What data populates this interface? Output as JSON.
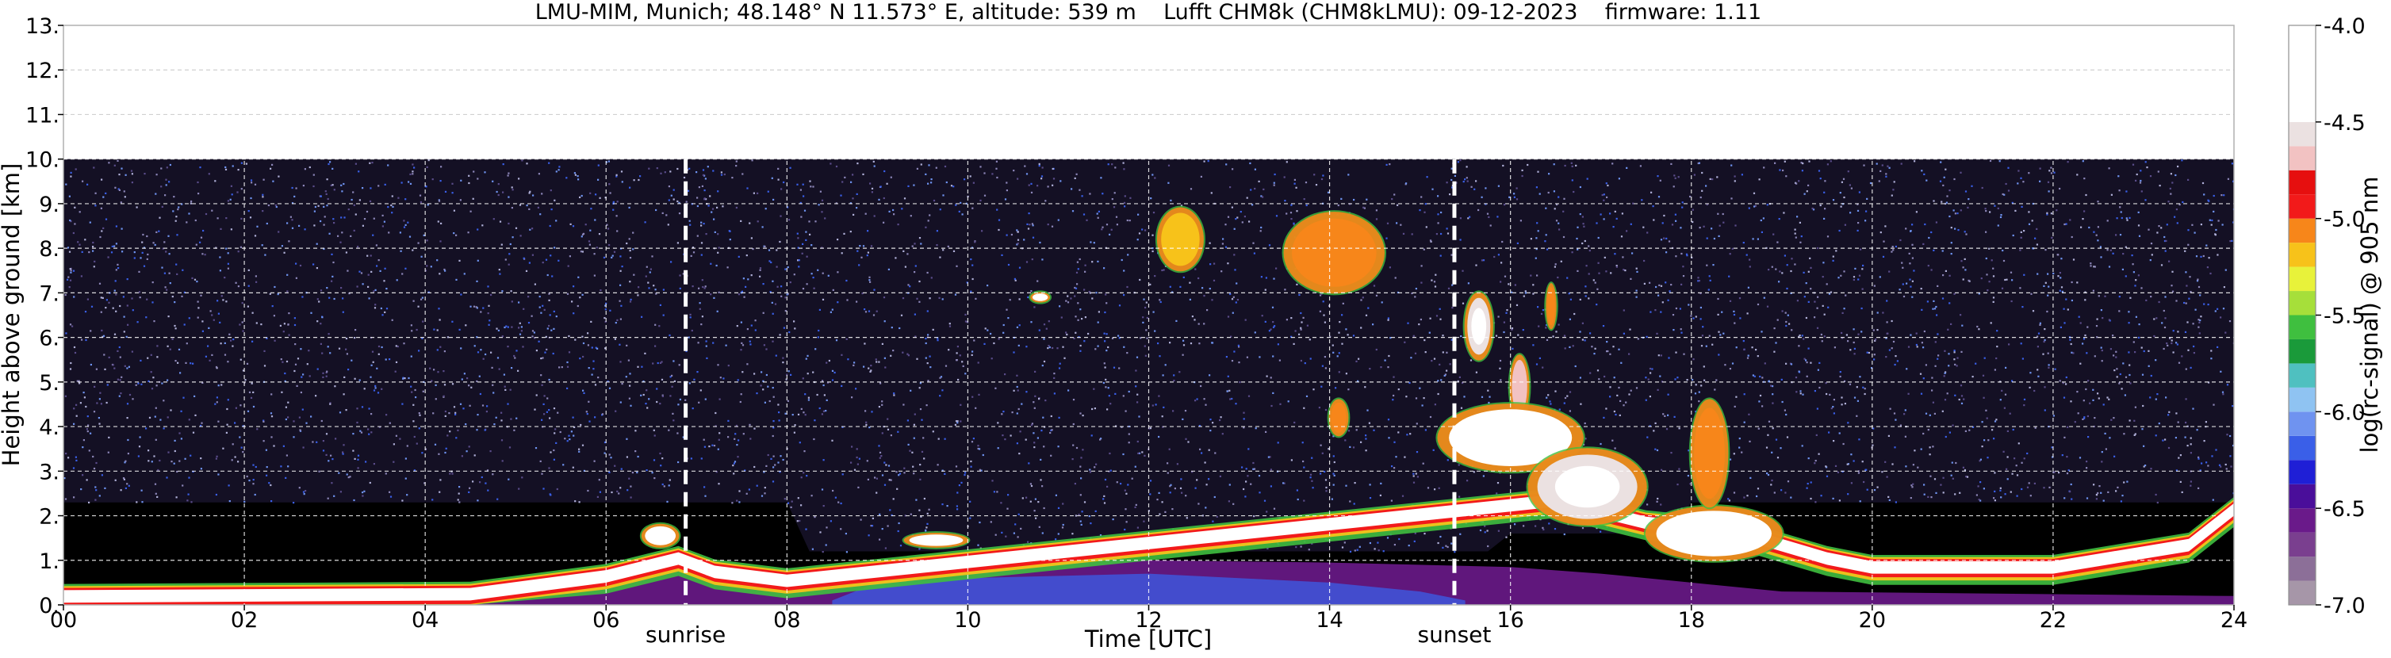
{
  "chart_data": {
    "type": "heatmap",
    "title": "LMU-MIM, Munich; 48.148° N 11.573° E, altitude: 539 m    Lufft CHM8k (CHM8kLMU): 09-12-2023    firmware: 1.11",
    "xlabel": "Time [UTC]",
    "ylabel": "Height above ground [km]",
    "colorbar_label": "log(rc-signal) @ 905 nm",
    "xlim": [
      0,
      24
    ],
    "ylim": [
      0,
      13
    ],
    "x_ticks": [
      {
        "value": 0,
        "label": "00"
      },
      {
        "value": 2,
        "label": "02"
      },
      {
        "value": 4,
        "label": "04"
      },
      {
        "value": 6,
        "label": "06"
      },
      {
        "value": 8,
        "label": "08"
      },
      {
        "value": 10,
        "label": "10"
      },
      {
        "value": 12,
        "label": "12"
      },
      {
        "value": 14,
        "label": "14"
      },
      {
        "value": 16,
        "label": "16"
      },
      {
        "value": 18,
        "label": "18"
      },
      {
        "value": 20,
        "label": "20"
      },
      {
        "value": 22,
        "label": "22"
      },
      {
        "value": 24,
        "label": "24"
      }
    ],
    "y_ticks": [
      {
        "value": 0,
        "label": "0."
      },
      {
        "value": 1,
        "label": "1."
      },
      {
        "value": 2,
        "label": "2."
      },
      {
        "value": 3,
        "label": "3."
      },
      {
        "value": 4,
        "label": "4."
      },
      {
        "value": 5,
        "label": "5."
      },
      {
        "value": 6,
        "label": "6."
      },
      {
        "value": 7,
        "label": "7."
      },
      {
        "value": 8,
        "label": "8."
      },
      {
        "value": 9,
        "label": "9."
      },
      {
        "value": 10,
        "label": "10."
      },
      {
        "value": 11,
        "label": "11."
      },
      {
        "value": 12,
        "label": "12."
      },
      {
        "value": 13,
        "label": "13."
      }
    ],
    "grid": true,
    "measurement_top": 10,
    "colorbar": {
      "range": [
        -7.0,
        -4.0
      ],
      "ticks": [
        {
          "value": -4.0,
          "label": "-4.0"
        },
        {
          "value": -4.5,
          "label": "-4.5"
        },
        {
          "value": -5.0,
          "label": "-5.0"
        },
        {
          "value": -5.5,
          "label": "-5.5"
        },
        {
          "value": -6.0,
          "label": "-6.0"
        },
        {
          "value": -6.5,
          "label": "-6.5"
        },
        {
          "value": -7.0,
          "label": "-7.0"
        }
      ],
      "bins": [
        {
          "from": -7.0,
          "to": -6.875,
          "color": "#a696a8"
        },
        {
          "from": -6.875,
          "to": -6.75,
          "color": "#8c6f98"
        },
        {
          "from": -6.75,
          "to": -6.625,
          "color": "#7a3f8f"
        },
        {
          "from": -6.625,
          "to": -6.5,
          "color": "#6a1a8a"
        },
        {
          "from": -6.5,
          "to": -6.375,
          "color": "#4a0e9a"
        },
        {
          "from": -6.375,
          "to": -6.25,
          "color": "#1f1fd6"
        },
        {
          "from": -6.25,
          "to": -6.125,
          "color": "#3a5fe8"
        },
        {
          "from": -6.125,
          "to": -6.0,
          "color": "#6f93f0"
        },
        {
          "from": -6.0,
          "to": -5.875,
          "color": "#8fc3f2"
        },
        {
          "from": -5.875,
          "to": -5.75,
          "color": "#4fc0c0"
        },
        {
          "from": -5.75,
          "to": -5.625,
          "color": "#1a9a3a"
        },
        {
          "from": -5.625,
          "to": -5.5,
          "color": "#3fbf3f"
        },
        {
          "from": -5.5,
          "to": -5.375,
          "color": "#a6df3a"
        },
        {
          "from": -5.375,
          "to": -5.25,
          "color": "#e8f23a"
        },
        {
          "from": -5.25,
          "to": -5.125,
          "color": "#f7c21a"
        },
        {
          "from": -5.125,
          "to": -5.0,
          "color": "#f7861a"
        },
        {
          "from": -5.0,
          "to": -4.875,
          "color": "#f21a1a"
        },
        {
          "from": -4.875,
          "to": -4.75,
          "color": "#e60f0f"
        },
        {
          "from": -4.75,
          "to": -4.625,
          "color": "#f2c2c2"
        },
        {
          "from": -4.625,
          "to": -4.5,
          "color": "#ebe1e1"
        },
        {
          "from": -4.5,
          "to": -4.0,
          "color": "#ffffff"
        }
      ]
    },
    "annotations": [
      {
        "name": "sunrise",
        "label": "sunrise",
        "x": 6.88
      },
      {
        "name": "sunset",
        "label": "sunset",
        "x": 15.38
      }
    ],
    "colors": {
      "background_dark": "#141024",
      "noise_light": "#8c86b8",
      "noise_mid": "#5a4c8a",
      "low_black": "#000000",
      "boundary_layer_purple": "#7a2f9a",
      "white_cloud": "#ffffff",
      "red_edge": "#f21a1a"
    },
    "features": {
      "background_value": -6.4,
      "boundary_layer_value": -6.6,
      "cloud_core_value": -4.3,
      "boundary_layer_top": [
        [
          0,
          0.25
        ],
        [
          3,
          0.3
        ],
        [
          5,
          0.55
        ],
        [
          6,
          0.8
        ],
        [
          7,
          0.9
        ],
        [
          8,
          0.8
        ],
        [
          10,
          0.9
        ],
        [
          12,
          1.0
        ],
        [
          14,
          0.95
        ],
        [
          16,
          0.85
        ],
        [
          17,
          0.7
        ],
        [
          18,
          0.5
        ],
        [
          19,
          0.3
        ],
        [
          24,
          0.2
        ]
      ],
      "low_cloud_layer": [
        [
          0,
          0.35
        ],
        [
          4.5,
          0.4
        ],
        [
          6,
          0.8
        ],
        [
          6.8,
          1.2
        ],
        [
          7.2,
          0.9
        ],
        [
          8,
          0.7
        ],
        [
          16.5,
          2.5
        ],
        [
          17.5,
          2.0
        ],
        [
          18.5,
          1.8
        ],
        [
          19.5,
          1.2
        ],
        [
          20,
          1.0
        ],
        [
          22,
          1.0
        ],
        [
          23.5,
          1.5
        ],
        [
          24,
          2.3
        ]
      ],
      "cloud_patches": [
        {
          "x0": 12.1,
          "x1": 12.6,
          "y0": 7.5,
          "y1": 8.9,
          "value": -5.2
        },
        {
          "x0": 13.5,
          "x1": 14.6,
          "y0": 7.0,
          "y1": 8.8,
          "value": -5.1
        },
        {
          "x0": 14.0,
          "x1": 14.2,
          "y0": 3.8,
          "y1": 4.6,
          "value": -5.0
        },
        {
          "x0": 15.5,
          "x1": 15.8,
          "y0": 5.5,
          "y1": 7.0,
          "value": -4.6
        },
        {
          "x0": 16.0,
          "x1": 16.2,
          "y0": 4.2,
          "y1": 5.6,
          "value": -4.7
        },
        {
          "x0": 16.4,
          "x1": 16.5,
          "y0": 6.2,
          "y1": 7.2,
          "value": -5.1
        },
        {
          "x0": 15.2,
          "x1": 16.8,
          "y0": 3.0,
          "y1": 4.5,
          "value": -4.4
        },
        {
          "x0": 16.2,
          "x1": 17.5,
          "y0": 1.8,
          "y1": 3.5,
          "value": -4.5
        },
        {
          "x0": 17.5,
          "x1": 19.0,
          "y0": 1.0,
          "y1": 2.2,
          "value": -4.4
        },
        {
          "x0": 18.0,
          "x1": 18.4,
          "y0": 2.2,
          "y1": 4.6,
          "value": -5.0
        },
        {
          "x0": 9.3,
          "x1": 10.0,
          "y0": 1.3,
          "y1": 1.6,
          "value": -4.4
        },
        {
          "x0": 10.7,
          "x1": 10.9,
          "y0": 6.8,
          "y1": 7.0,
          "value": -4.4
        },
        {
          "x0": 6.4,
          "x1": 6.8,
          "y0": 1.3,
          "y1": 1.8,
          "value": -4.4
        }
      ]
    }
  }
}
